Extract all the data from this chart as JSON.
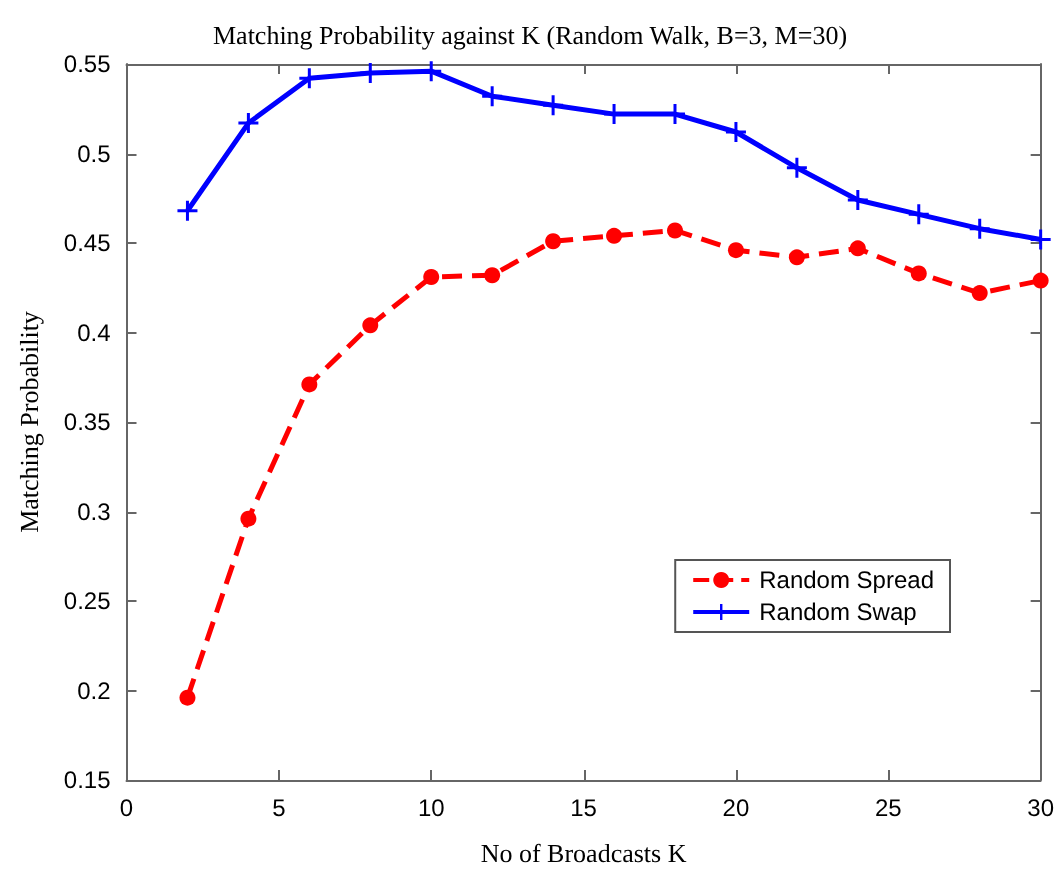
{
  "chart_data": {
    "type": "line",
    "title": "Matching Probability against K (Random Walk, B=3, M=30)",
    "xlabel": "No of Broadcasts K",
    "ylabel": "Matching Probability",
    "x": [
      2,
      4,
      6,
      8,
      10,
      12,
      14,
      16,
      18,
      20,
      22,
      24,
      26,
      28,
      30
    ],
    "series": [
      {
        "name": "Random Spread",
        "color": "#ff0000",
        "marker": "circle",
        "line_style": "dashed",
        "values": [
          0.196,
          0.296,
          0.371,
          0.404,
          0.431,
          0.432,
          0.451,
          0.454,
          0.457,
          0.446,
          0.442,
          0.447,
          0.433,
          0.422,
          0.429
        ]
      },
      {
        "name": "Random Swap",
        "color": "#0000ff",
        "marker": "cross",
        "line_style": "solid",
        "values": [
          0.468,
          0.517,
          0.542,
          0.545,
          0.546,
          0.532,
          0.527,
          0.522,
          0.522,
          0.512,
          0.492,
          0.474,
          0.466,
          0.458,
          0.452
        ]
      }
    ],
    "xlim": [
      0,
      30
    ],
    "xticks": [
      0,
      5,
      10,
      15,
      20,
      25,
      30
    ],
    "ylim": [
      0.15,
      0.55
    ],
    "yticks": [
      0.15,
      0.2,
      0.25,
      0.3,
      0.35,
      0.4,
      0.45,
      0.5,
      0.55
    ],
    "grid": false,
    "legend": "right"
  }
}
